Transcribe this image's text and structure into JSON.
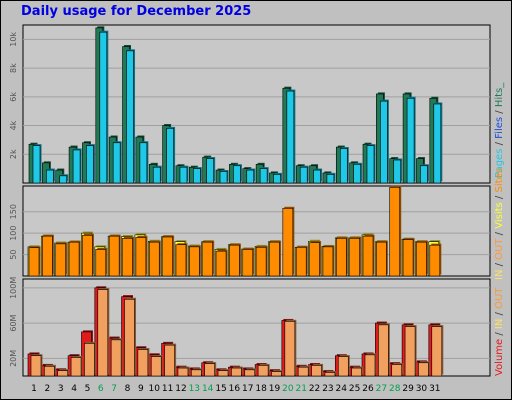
{
  "title": "Daily usage for December 2025",
  "colors": {
    "frame_bg": "#c0c0c0",
    "plot_bg": "#c8c8c8",
    "pages": "#1f7a55",
    "files": "#1e4cdc",
    "hits": "#1ec8e6",
    "visits": "#ffff33",
    "sites": "#ff8c00",
    "in": "#ffe066",
    "out": "#ff9933",
    "volume": "#e31a1c",
    "volume_light": "#f2a060",
    "weekend": "#00a050",
    "weekday": "#000000"
  },
  "chart_data": [
    {
      "type": "bar",
      "panel": "top",
      "categories": [
        "1",
        "2",
        "3",
        "4",
        "5",
        "6",
        "7",
        "8",
        "9",
        "10",
        "11",
        "12",
        "13",
        "14",
        "15",
        "16",
        "17",
        "18",
        "19",
        "20",
        "21",
        "22",
        "23",
        "24",
        "25",
        "26",
        "27",
        "28",
        "29",
        "30",
        "31"
      ],
      "y_ticks": [
        "2k",
        "4k",
        "6k",
        "8k",
        "10k"
      ],
      "ylim": [
        0,
        11000
      ],
      "legend": {
        "pages": "Pages",
        "sep1": " / ",
        "files": "Files",
        "sep2": " / ",
        "hits": "Hits_"
      },
      "series": [
        {
          "name": "Pages",
          "values": [
            2700,
            1400,
            900,
            2500,
            2800,
            10800,
            3200,
            9500,
            3200,
            1300,
            4000,
            1200,
            1100,
            1800,
            900,
            1300,
            1000,
            1300,
            700,
            6600,
            1200,
            1200,
            700,
            2500,
            1400,
            2700,
            6200,
            1700,
            6200,
            1700,
            5900
          ]
        },
        {
          "name": "Hits",
          "values": [
            2600,
            900,
            500,
            2300,
            2600,
            10500,
            2800,
            9200,
            2800,
            1100,
            3800,
            1100,
            1000,
            1700,
            800,
            1200,
            900,
            1000,
            600,
            6400,
            1100,
            900,
            600,
            2400,
            1300,
            2600,
            5700,
            1600,
            5900,
            1200,
            5500
          ]
        }
      ]
    },
    {
      "type": "bar",
      "panel": "middle",
      "categories": [
        "1",
        "2",
        "3",
        "4",
        "5",
        "6",
        "7",
        "8",
        "9",
        "10",
        "11",
        "12",
        "13",
        "14",
        "15",
        "16",
        "17",
        "18",
        "19",
        "20",
        "21",
        "22",
        "23",
        "24",
        "25",
        "26",
        "27",
        "28",
        "29",
        "30",
        "31"
      ],
      "y_ticks": [
        "50",
        "100",
        "150"
      ],
      "ylim": [
        0,
        210
      ],
      "legend": {
        "in": "IN",
        "sep1": " / ",
        "out": "OUT",
        "sep2": " / ",
        "visits": "Visits",
        "sep3": " / ",
        "sites": "Sites"
      },
      "series": [
        {
          "name": "Visits",
          "values": [
            68,
            93,
            77,
            79,
            100,
            68,
            93,
            92,
            96,
            81,
            92,
            80,
            70,
            80,
            62,
            73,
            63,
            69,
            80,
            0,
            67,
            81,
            69,
            89,
            89,
            96,
            80,
            0,
            86,
            80,
            80
          ]
        },
        {
          "name": "Sites",
          "values": [
            66,
            93,
            75,
            79,
            95,
            62,
            93,
            88,
            90,
            79,
            91,
            73,
            68,
            79,
            58,
            72,
            62,
            67,
            79,
            158,
            67,
            78,
            68,
            88,
            88,
            93,
            79,
            207,
            85,
            79,
            72
          ]
        }
      ]
    },
    {
      "type": "bar",
      "panel": "bottom",
      "categories": [
        "1",
        "2",
        "3",
        "4",
        "5",
        "6",
        "7",
        "8",
        "9",
        "10",
        "11",
        "12",
        "13",
        "14",
        "15",
        "16",
        "17",
        "18",
        "19",
        "20",
        "21",
        "22",
        "23",
        "24",
        "25",
        "26",
        "27",
        "28",
        "29",
        "30",
        "31"
      ],
      "y_ticks": [
        "20M",
        "60M",
        "100M"
      ],
      "ylim": [
        0,
        110
      ],
      "legend": {
        "volume": "Volume",
        "sep1": " / ",
        "in": "IN",
        "sep2": " / ",
        "out": "OUT"
      },
      "series": [
        {
          "name": "Volume",
          "values": [
            25,
            12,
            7,
            23,
            50,
            100,
            43,
            90,
            32,
            24,
            37,
            10,
            8,
            15,
            7,
            10,
            8,
            13,
            6,
            63,
            11,
            13,
            5,
            23,
            10,
            25,
            60,
            14,
            58,
            16,
            58
          ]
        },
        {
          "name": "OUT",
          "values": [
            23,
            11,
            6,
            21,
            37,
            98,
            41,
            87,
            30,
            22,
            35,
            9,
            7,
            14,
            6,
            9,
            7,
            12,
            5,
            62,
            10,
            12,
            4,
            22,
            9,
            24,
            58,
            13,
            56,
            15,
            56
          ]
        }
      ]
    }
  ]
}
